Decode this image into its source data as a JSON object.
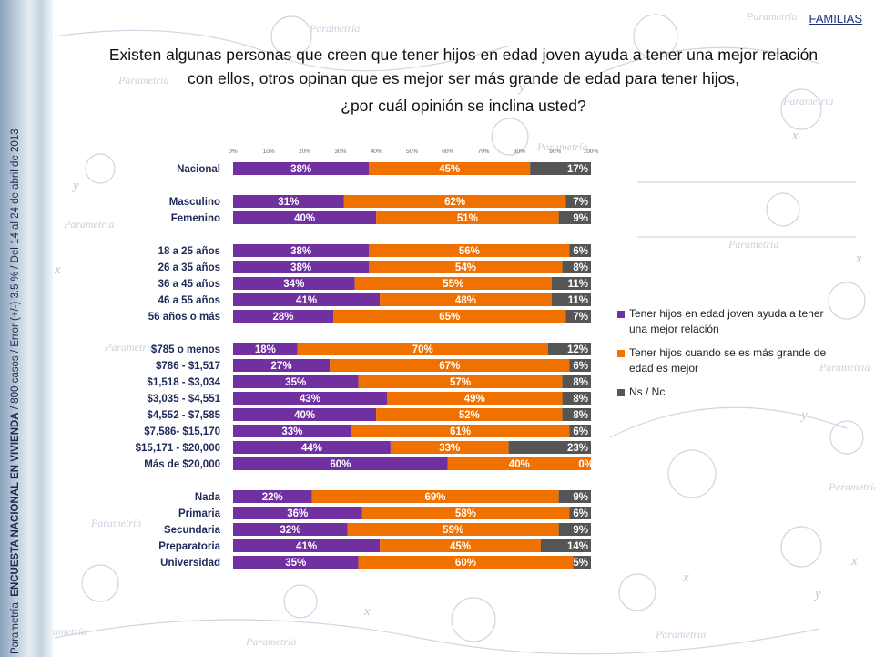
{
  "section_label": "FAMILIAS",
  "question": {
    "line1": "Existen algunas personas que creen que tener hijos en edad joven ayuda a tener una mejor relación",
    "line2": "con ellos, otros opinan que es mejor ser más grande de edad para tener hijos,",
    "line3": "¿por cuál opinión se inclina usted?"
  },
  "sidebar": {
    "source": "Parametría;",
    "survey": "ENCUESTA NACIONAL EN VIVIENDA",
    "details": "/ 800 casos / Error (+/-) 3.5 % / Del 14 al 24  de abril de 2013"
  },
  "colors": {
    "purple": "#7030a0",
    "orange": "#f07000",
    "gray": "#555555"
  },
  "chart_data": {
    "type": "bar",
    "orientation": "horizontal",
    "stacked": true,
    "xlim": [
      0,
      100
    ],
    "x_ticks": [
      "0%",
      "10%",
      "20%",
      "30%",
      "40%",
      "50%",
      "60%",
      "70%",
      "80%",
      "90%",
      "100%"
    ],
    "legend_position": "right",
    "categories": [
      "Nacional",
      "Masculino",
      "Femenino",
      "18 a 25 años",
      "26 a 35 años",
      "36 a 45 años",
      "46 a 55 años",
      "56 años o más",
      "$785 o menos",
      "$786 - $1,517",
      "$1,518 - $3,034",
      "$3,035 - $4,551",
      "$4,552 - $7,585",
      "$7,586- $15,170",
      "$15,171 - $20,000",
      "Más de $20,000",
      "Nada",
      "Primaria",
      "Secundaria",
      "Preparatoria",
      "Universidad"
    ],
    "groups": [
      1,
      2,
      5,
      8,
      5
    ],
    "series": [
      {
        "name": "Tener hijos en edad joven ayuda a tener una mejor relación",
        "color": "#7030a0",
        "values": [
          38,
          31,
          40,
          38,
          38,
          34,
          41,
          28,
          18,
          27,
          35,
          43,
          40,
          33,
          44,
          60,
          22,
          36,
          32,
          41,
          35
        ]
      },
      {
        "name": "Tener hijos cuando se es más grande de edad es mejor",
        "color": "#f07000",
        "values": [
          45,
          62,
          51,
          56,
          54,
          55,
          48,
          65,
          70,
          67,
          57,
          49,
          52,
          61,
          33,
          40,
          69,
          58,
          59,
          45,
          60
        ]
      },
      {
        "name": "Ns / Nc",
        "color": "#555555",
        "values": [
          17,
          7,
          9,
          6,
          8,
          11,
          11,
          7,
          12,
          6,
          8,
          8,
          8,
          6,
          23,
          0,
          9,
          6,
          9,
          14,
          5
        ]
      }
    ]
  }
}
